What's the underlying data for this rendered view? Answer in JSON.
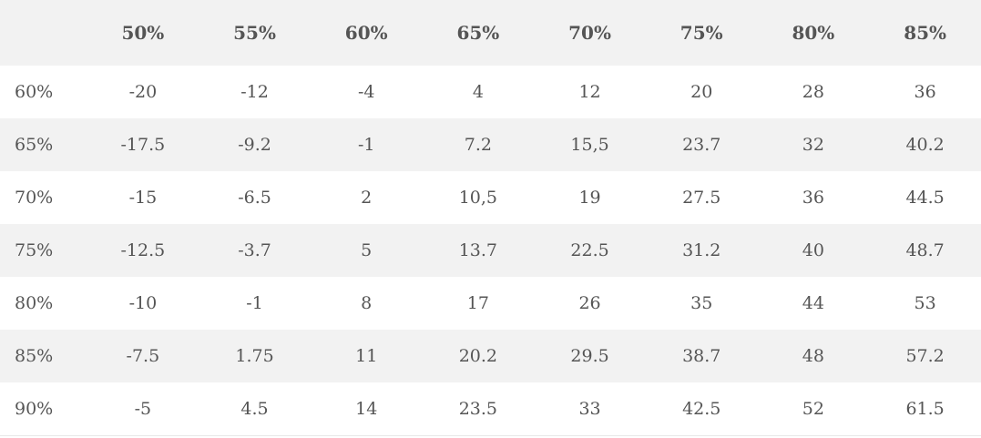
{
  "table": {
    "corner": "",
    "columns": [
      "50%",
      "55%",
      "60%",
      "65%",
      "70%",
      "75%",
      "80%",
      "85%"
    ],
    "rows": [
      {
        "label": "60%",
        "values": [
          "-20",
          "-12",
          "-4",
          "4",
          "12",
          "20",
          "28",
          "36"
        ]
      },
      {
        "label": "65%",
        "values": [
          "-17.5",
          "-9.2",
          "-1",
          "7.2",
          "15,5",
          "23.7",
          "32",
          "40.2"
        ]
      },
      {
        "label": "70%",
        "values": [
          "-15",
          "-6.5",
          "2",
          "10,5",
          "19",
          "27.5",
          "36",
          "44.5"
        ]
      },
      {
        "label": "75%",
        "values": [
          "-12.5",
          "-3.7",
          "5",
          "13.7",
          "22.5",
          "31.2",
          "40",
          "48.7"
        ]
      },
      {
        "label": "80%",
        "values": [
          "-10",
          "-1",
          "8",
          "17",
          "26",
          "35",
          "44",
          "53"
        ]
      },
      {
        "label": "85%",
        "values": [
          "-7.5",
          "1.75",
          "11",
          "20.2",
          "29.5",
          "38.7",
          "48",
          "57.2"
        ]
      },
      {
        "label": "90%",
        "values": [
          "-5",
          "4.5",
          "14",
          "23.5",
          "33",
          "42.5",
          "52",
          "61.5"
        ]
      }
    ]
  }
}
